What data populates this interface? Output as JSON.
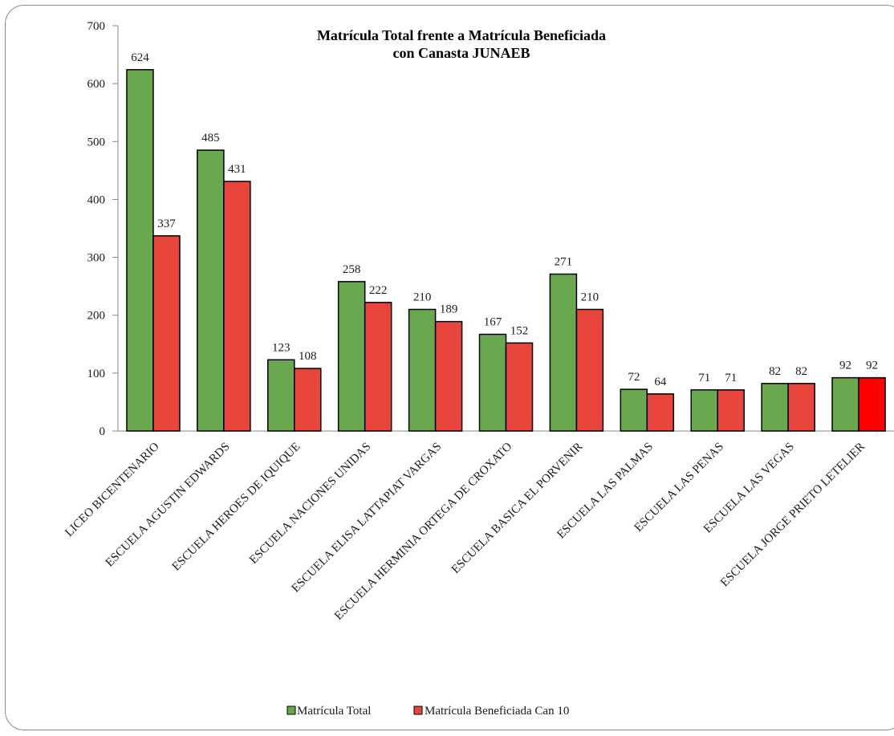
{
  "chart_data": {
    "type": "bar",
    "title_lines": [
      "Matrícula Total  frente a Matrícula Beneficiada",
      "con Canasta JUNAEB"
    ],
    "categories": [
      "LICEO BICENTENARIO",
      "ESCUELA AGUSTIN EDWARDS",
      "ESCUELA HEROES DE IQUIQUE",
      "ESCUELA NACIONES UNIDAS",
      "ESCUELA ELISA LATTAPIAT VARGAS",
      "ESCUELA HERMINIA ORTEGA DE CROXATO",
      "ESCUELA BASICA EL PORVENIR",
      "ESCUELA LAS PALMAS",
      "ESCUELA LAS PENAS",
      "ESCUELA LAS VEGAS",
      "ESCUELA JORGE PRIETO LETELIER"
    ],
    "series": [
      {
        "name": "Matrícula Total",
        "color": "#6aa84f",
        "values": [
          624,
          485,
          123,
          258,
          210,
          167,
          271,
          72,
          71,
          82,
          92
        ]
      },
      {
        "name": "Matrícula Beneficiada Can 10",
        "color": "#e8453c",
        "values": [
          337,
          431,
          108,
          222,
          189,
          152,
          210,
          64,
          71,
          82,
          92
        ]
      }
    ],
    "highlight_color": "#ff0000",
    "highlight_index": 10,
    "y_ticks": [
      0,
      100,
      200,
      300,
      400,
      500,
      600,
      700
    ],
    "ylim": [
      0,
      700
    ],
    "grid": false,
    "legend_position": "bottom"
  }
}
